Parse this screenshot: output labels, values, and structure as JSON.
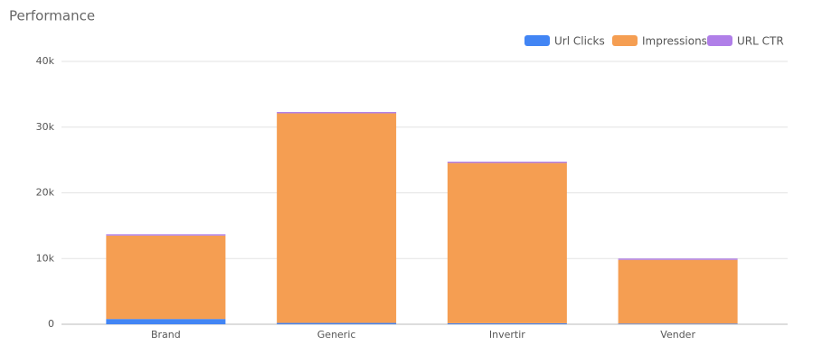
{
  "chart_data": {
    "type": "stacked-bar",
    "title": "Performance",
    "categories": [
      "Brand",
      "Generic",
      "Invertir",
      "Vender"
    ],
    "series": [
      {
        "name": "Url Clicks",
        "color": "#4285f4",
        "values": [
          800,
          200,
          150,
          100
        ]
      },
      {
        "name": "Impressions",
        "color": "#f59e52",
        "values": [
          12700,
          31900,
          24400,
          9700
        ]
      },
      {
        "name": "URL CTR",
        "color": "#b07fe8",
        "values": [
          200,
          200,
          200,
          200
        ]
      }
    ],
    "ylim": [
      0,
      40000
    ],
    "yticks": [
      0,
      {
        "value": 10000,
        "label": "10k"
      },
      {
        "value": 20000,
        "label": "20k"
      },
      {
        "value": 30000,
        "label": "30k"
      },
      {
        "value": 40000,
        "label": "40k"
      }
    ],
    "grid": true,
    "legend": "top-right"
  }
}
